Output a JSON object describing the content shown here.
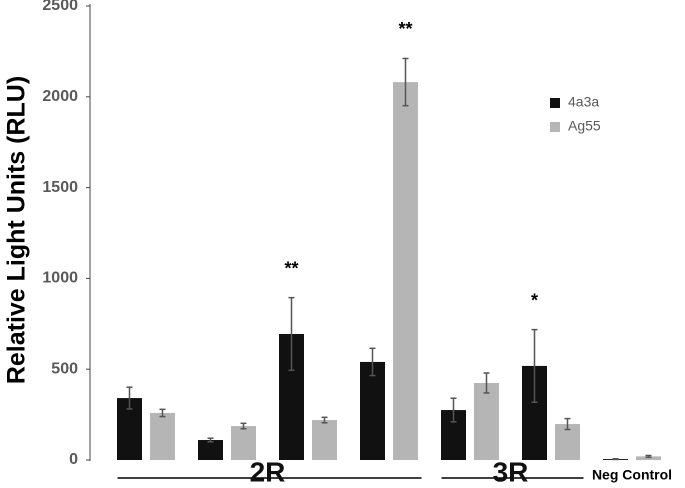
{
  "chart_data": {
    "type": "bar",
    "y_label": "Relative Light Units (RLU)",
    "categories": [
      null,
      null,
      null,
      null,
      null,
      null,
      null
    ],
    "groups": [
      {
        "label": "2R",
        "size": 4
      },
      {
        "label": "3R",
        "size": 2
      },
      {
        "label": "Neg Control",
        "size": 1
      }
    ],
    "series": [
      {
        "name": "4a3a",
        "color": "#111111",
        "values": [
          341,
          110,
          694,
          540,
          275,
          518,
          5
        ],
        "errors": [
          60,
          10,
          200,
          75,
          65,
          200,
          2
        ]
      },
      {
        "name": "Ag55",
        "color": "#b5b5b5",
        "values": [
          259,
          187,
          220,
          2081,
          424,
          198,
          20
        ],
        "errors": [
          20,
          15,
          15,
          130,
          55,
          30,
          5
        ]
      }
    ],
    "annotations": [
      {
        "text": "**",
        "category": 2,
        "series": 0
      },
      {
        "text": "**",
        "category": 3,
        "series": 1
      },
      {
        "text": "*",
        "category": 5,
        "series": 0
      }
    ],
    "ylim": [
      0,
      2500
    ],
    "yticks": [
      0,
      500,
      1000,
      1500,
      2000,
      2500
    ],
    "legend": "top-right"
  }
}
